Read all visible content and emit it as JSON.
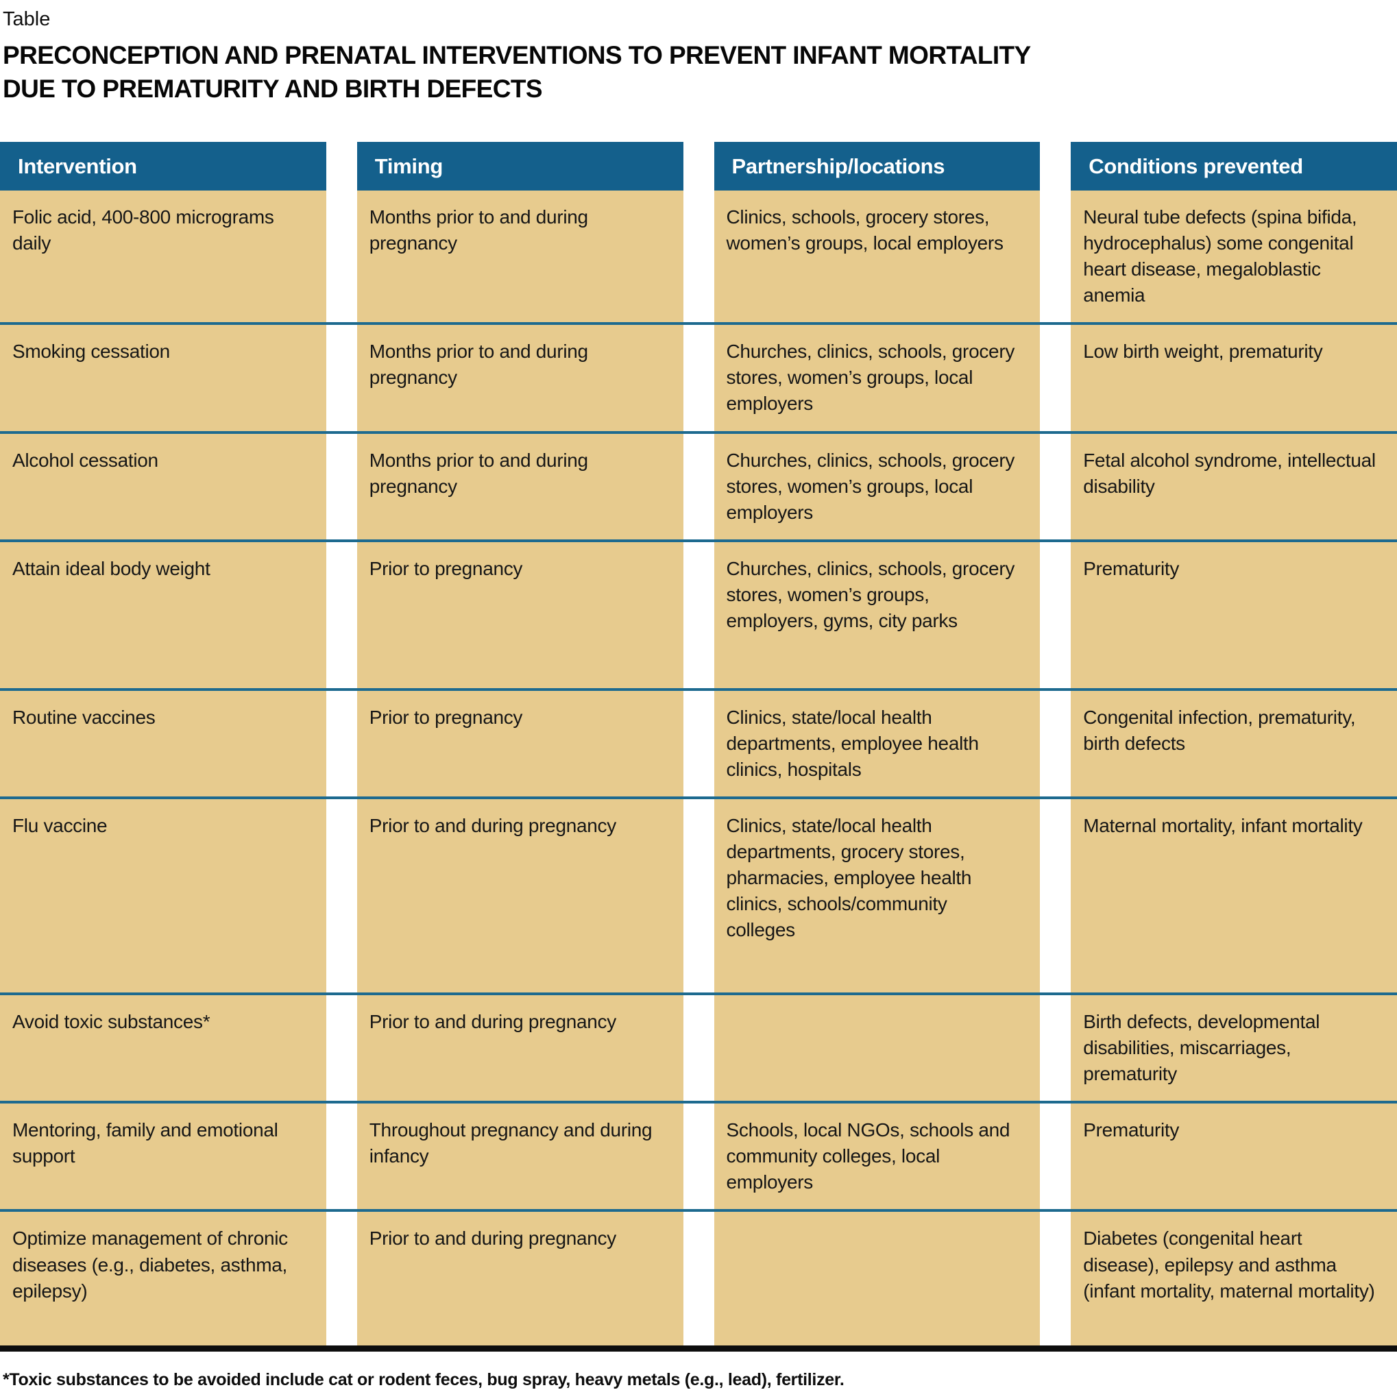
{
  "page": {
    "kicker": "Table",
    "title_line1": "PRECONCEPTION AND PRENATAL INTERVENTIONS TO PREVENT INFANT MORTALITY",
    "title_line2": "DUE TO PREMATURITY AND BIRTH DEFECTS",
    "footnote": "*Toxic substances to be avoided include cat or rodent feces, bug spray, heavy metals (e.g., lead), fertilizer."
  },
  "colors": {
    "header_bg": "#14608c",
    "cell_bg": "#e7cb8e",
    "row_divider": "#1d6a8f",
    "bottom_rule": "#0d0d0d",
    "header_text": "#ffffff",
    "body_text": "#161616"
  },
  "table": {
    "columns": [
      "Intervention",
      "Timing",
      "Partnership/locations",
      "Conditions prevented"
    ],
    "rows": [
      {
        "intervention": "Folic acid, 400-800 micrograms daily",
        "timing": "Months prior to and during pregnancy",
        "partnership": "Clinics, schools, grocery stores, women’s groups, local employers",
        "conditions": "Neural tube defects (spina bifida, hydrocephalus) some congenital heart disease, megaloblastic anemia"
      },
      {
        "intervention": "Smoking cessation",
        "timing": "Months prior to and during pregnancy",
        "partnership": "Churches, clinics, schools, grocery stores, women’s groups, local employers",
        "conditions": "Low birth weight, prematurity"
      },
      {
        "intervention": "Alcohol cessation",
        "timing": "Months prior to and during pregnancy",
        "partnership": "Churches, clinics, schools, grocery stores, women’s groups, local employers",
        "conditions": "Fetal alcohol syndrome, intellectual disability"
      },
      {
        "intervention": "Attain ideal body weight",
        "timing": "Prior to pregnancy",
        "partnership": "Churches, clinics, schools, grocery stores, women’s groups, employers, gyms, city parks",
        "conditions": "Prematurity"
      },
      {
        "intervention": "Routine vaccines",
        "timing": "Prior to pregnancy",
        "partnership": "Clinics, state/local health departments, employee health clinics, hospitals",
        "conditions": "Congenital infection, prematurity, birth defects"
      },
      {
        "intervention": "Flu vaccine",
        "timing": "Prior to and during pregnancy",
        "partnership": "Clinics, state/local health departments, grocery stores, pharmacies, employee health clinics, schools/community colleges",
        "conditions": "Maternal mortality, infant mortality"
      },
      {
        "intervention": "Avoid toxic substances*",
        "timing": "Prior to and during pregnancy",
        "partnership": "",
        "conditions": "Birth defects, developmental disabilities, miscarriages, prematurity"
      },
      {
        "intervention": "Mentoring, family and emotional support",
        "timing": "Throughout pregnancy and during infancy",
        "partnership": "Schools, local NGOs, schools and community colleges, local employers",
        "conditions": "Prematurity"
      },
      {
        "intervention": "Optimize management of chronic diseases (e.g., diabetes, asthma, epilepsy)",
        "timing": "Prior to and during pregnancy",
        "partnership": "",
        "conditions": "Diabetes (congenital heart disease), epilepsy and asthma (infant mortality, maternal mortality)"
      }
    ]
  }
}
